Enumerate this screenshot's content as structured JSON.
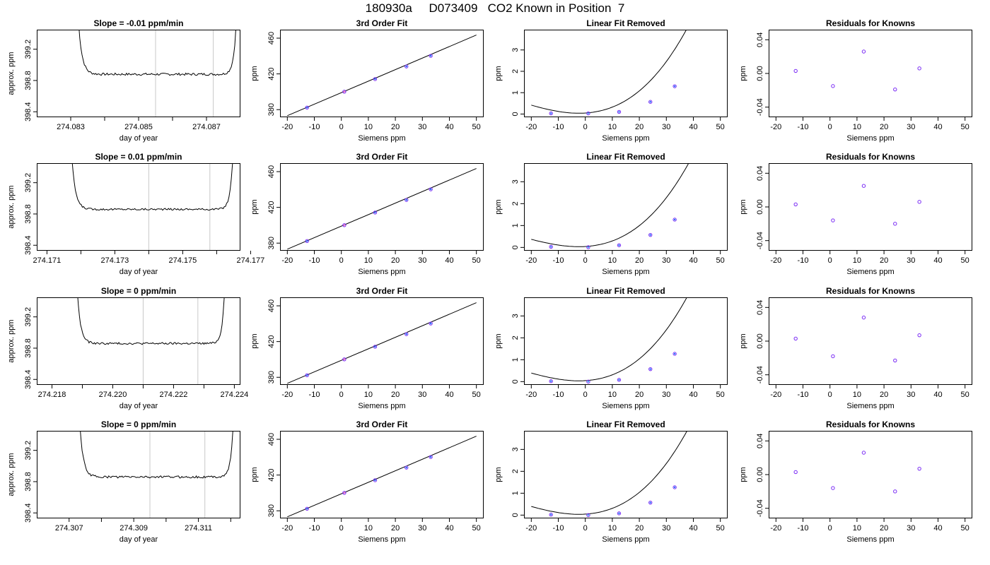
{
  "page": {
    "title": "180930a     D073409   CO2 Known in Position  7"
  },
  "style": {
    "trace_color": "#000000",
    "marker_outer": "#7b2cf5",
    "marker_inner": "#1e6fff",
    "marker_cyan": "#33aaff",
    "marker_pink": "#ff66cc",
    "vline_color": "#c8c8c8"
  },
  "chart_data": [
    {
      "type": "line",
      "row": 0,
      "col": 0,
      "title": "Slope =  -0.01  ppm/min",
      "xlabel": "day of year",
      "ylabel": "approx. ppm",
      "xlim": [
        274.082,
        274.088
      ],
      "ylim": [
        398.33,
        399.45
      ],
      "xticks": [
        274.083,
        274.085,
        274.087
      ],
      "xtick_labels": [
        "274.083",
        "274.085",
        "274.087"
      ],
      "yticks": [
        398.4,
        398.8,
        399.2
      ],
      "ytick_labels": [
        "398.4",
        "398.8",
        "399.2"
      ],
      "x_gap_ticks": [
        274.084,
        274.086
      ],
      "vlines": [
        274.0855,
        274.0872
      ],
      "shape": {
        "x_start": 274.0832,
        "x_end": 274.0879,
        "baseline": 398.88,
        "noise": 0.015
      }
    },
    {
      "type": "scatter",
      "row": 0,
      "col": 1,
      "title": "3rd Order Fit",
      "xlabel": "Siemens ppm",
      "ylabel": "ppm",
      "xlim": [
        -22.7,
        52.7
      ],
      "ylim": [
        371.5,
        469.5
      ],
      "xticks": [
        -20,
        -10,
        0,
        10,
        20,
        30,
        40,
        50
      ],
      "xtick_labels": [
        "-20",
        "-10",
        "0",
        "10",
        "20",
        "30",
        "40",
        "50"
      ],
      "yticks": [
        380,
        420,
        460
      ],
      "ytick_labels": [
        "380",
        "420",
        "460"
      ],
      "line": {
        "x": [
          -20,
          50
        ],
        "y": [
          373.2,
          463.5
        ]
      },
      "x": [
        -12.7,
        1.1,
        12.5,
        24.1,
        33.1
      ],
      "y": [
        382.3,
        400.1,
        414.2,
        428.3,
        440.2
      ]
    },
    {
      "type": "scatter",
      "row": 0,
      "col": 2,
      "title": "Linear Fit Removed",
      "xlabel": "Siemens ppm",
      "ylabel": "ppm",
      "xlim": [
        -22.7,
        52.7
      ],
      "ylim": [
        -0.15,
        3.95
      ],
      "xticks": [
        -20,
        -10,
        0,
        10,
        20,
        30,
        40,
        50
      ],
      "xtick_labels": [
        "-20",
        "-10",
        "0",
        "10",
        "20",
        "30",
        "40",
        "50"
      ],
      "yticks": [
        0,
        1,
        2,
        3
      ],
      "ytick_labels": [
        "0",
        "1",
        "2",
        "3"
      ],
      "curve": {
        "coef": [
          0.047,
          0.0079,
          0.00176,
          2.18e-05
        ],
        "xrange": [
          -20,
          50
        ]
      },
      "x": [
        -12.7,
        1.1,
        12.5,
        24.1,
        33.1
      ],
      "y": [
        0.03,
        0.03,
        0.1,
        0.57,
        1.3
      ]
    },
    {
      "type": "scatter",
      "row": 0,
      "col": 3,
      "title": "Residuals for Knowns",
      "xlabel": "Siemens ppm",
      "ylabel": "ppm",
      "xlim": [
        -22.7,
        52.7
      ],
      "ylim": [
        -0.052,
        0.052
      ],
      "xticks": [
        -20,
        -10,
        0,
        10,
        20,
        30,
        40,
        50
      ],
      "xtick_labels": [
        "-20",
        "-10",
        "0",
        "10",
        "20",
        "30",
        "40",
        "50"
      ],
      "yticks": [
        -0.04,
        0.0,
        0.04
      ],
      "ytick_labels": [
        "-0.04",
        "0.00",
        "0.04"
      ],
      "x": [
        -12.7,
        1.1,
        12.5,
        24.1,
        33.1
      ],
      "y": [
        0.003,
        -0.015,
        0.026,
        -0.019,
        0.006
      ]
    },
    {
      "type": "line",
      "row": 1,
      "col": 0,
      "title": "Slope =  0.01  ppm/min",
      "xlabel": "day of year",
      "ylabel": "approx. ppm",
      "xlim": [
        274.1707,
        274.1767
      ],
      "ylim": [
        398.33,
        399.45
      ],
      "xticks": [
        274.171,
        274.173,
        274.175,
        274.177
      ],
      "xtick_labels": [
        "274.171",
        "274.173",
        "274.175",
        "274.177"
      ],
      "yticks": [
        398.4,
        398.8,
        399.2
      ],
      "ytick_labels": [
        "398.4",
        "398.8",
        "399.2"
      ],
      "x_gap_ticks": [
        274.172,
        274.174,
        274.176
      ],
      "vlines": [
        274.174,
        274.1758
      ],
      "shape": {
        "x_start": 274.1717,
        "x_end": 274.1765,
        "baseline": 398.86,
        "noise": 0.012
      }
    },
    {
      "type": "scatter",
      "row": 1,
      "col": 1,
      "title": "3rd Order Fit",
      "xlabel": "Siemens ppm",
      "ylabel": "ppm",
      "xlim": [
        -22.7,
        52.7
      ],
      "ylim": [
        371.5,
        469.5
      ],
      "xticks": [
        -20,
        -10,
        0,
        10,
        20,
        30,
        40,
        50
      ],
      "xtick_labels": [
        "-20",
        "-10",
        "0",
        "10",
        "20",
        "30",
        "40",
        "50"
      ],
      "yticks": [
        380,
        420,
        460
      ],
      "ytick_labels": [
        "380",
        "420",
        "460"
      ],
      "line": {
        "x": [
          -20,
          50
        ],
        "y": [
          373.2,
          463.5
        ]
      },
      "x": [
        -12.7,
        1.1,
        12.5,
        24.1,
        33.1
      ],
      "y": [
        382.3,
        400.1,
        414.2,
        428.3,
        440.2
      ]
    },
    {
      "type": "scatter",
      "row": 1,
      "col": 2,
      "title": "Linear Fit Removed",
      "xlabel": "Siemens ppm",
      "ylabel": "ppm",
      "xlim": [
        -22.7,
        52.7
      ],
      "ylim": [
        -0.15,
        3.85
      ],
      "xticks": [
        -20,
        -10,
        0,
        10,
        20,
        30,
        40,
        50
      ],
      "xtick_labels": [
        "-20",
        "-10",
        "0",
        "10",
        "20",
        "30",
        "40",
        "50"
      ],
      "yticks": [
        0,
        1,
        2,
        3
      ],
      "ytick_labels": [
        "0",
        "1",
        "2",
        "3"
      ],
      "curve": {
        "coef": [
          0.043,
          0.0072,
          0.0016,
          2.12e-05
        ],
        "xrange": [
          -20,
          50
        ]
      },
      "x": [
        -12.7,
        1.1,
        12.5,
        24.1,
        33.1
      ],
      "y": [
        0.03,
        0.01,
        0.1,
        0.57,
        1.27
      ]
    },
    {
      "type": "scatter",
      "row": 1,
      "col": 3,
      "title": "Residuals for Knowns",
      "xlabel": "Siemens ppm",
      "ylabel": "ppm",
      "xlim": [
        -22.7,
        52.7
      ],
      "ylim": [
        -0.052,
        0.052
      ],
      "xticks": [
        -20,
        -10,
        0,
        10,
        20,
        30,
        40,
        50
      ],
      "xtick_labels": [
        "-20",
        "-10",
        "0",
        "10",
        "20",
        "30",
        "40",
        "50"
      ],
      "yticks": [
        -0.04,
        0.0,
        0.04
      ],
      "ytick_labels": [
        "-0.04",
        "0.00",
        "0.04"
      ],
      "x": [
        -12.7,
        1.1,
        12.5,
        24.1,
        33.1
      ],
      "y": [
        0.003,
        -0.016,
        0.025,
        -0.02,
        0.006
      ]
    },
    {
      "type": "line",
      "row": 2,
      "col": 0,
      "title": "Slope =  0  ppm/min",
      "xlabel": "day of year",
      "ylabel": "approx. ppm",
      "xlim": [
        274.2175,
        274.2242
      ],
      "ylim": [
        398.33,
        399.45
      ],
      "xticks": [
        274.218,
        274.22,
        274.222,
        274.224
      ],
      "xtick_labels": [
        "274.218",
        "274.220",
        "274.222",
        "274.224"
      ],
      "yticks": [
        398.4,
        398.8,
        399.2
      ],
      "ytick_labels": [
        "398.4",
        "398.8",
        "399.2"
      ],
      "x_gap_ticks": [
        274.219,
        274.221,
        274.223
      ],
      "vlines": [
        274.221,
        274.2228
      ],
      "shape": {
        "x_start": 274.2188,
        "x_end": 274.2237,
        "baseline": 398.86,
        "noise": 0.013
      }
    },
    {
      "type": "scatter",
      "row": 2,
      "col": 1,
      "title": "3rd Order Fit",
      "xlabel": "Siemens ppm",
      "ylabel": "ppm",
      "xlim": [
        -22.7,
        52.7
      ],
      "ylim": [
        371.5,
        469.5
      ],
      "xticks": [
        -20,
        -10,
        0,
        10,
        20,
        30,
        40,
        50
      ],
      "xtick_labels": [
        "-20",
        "-10",
        "0",
        "10",
        "20",
        "30",
        "40",
        "50"
      ],
      "yticks": [
        380,
        420,
        460
      ],
      "ytick_labels": [
        "380",
        "420",
        "460"
      ],
      "line": {
        "x": [
          -20,
          50
        ],
        "y": [
          373.2,
          463.5
        ]
      },
      "x": [
        -12.7,
        1.1,
        12.5,
        24.1,
        33.1
      ],
      "y": [
        382.3,
        400.1,
        414.2,
        428.3,
        440.2
      ]
    },
    {
      "type": "scatter",
      "row": 2,
      "col": 2,
      "title": "Linear Fit Removed",
      "xlabel": "Siemens ppm",
      "ylabel": "ppm",
      "xlim": [
        -22.7,
        52.7
      ],
      "ylim": [
        -0.15,
        3.85
      ],
      "xticks": [
        -20,
        -10,
        0,
        10,
        20,
        30,
        40,
        50
      ],
      "xtick_labels": [
        "-20",
        "-10",
        "0",
        "10",
        "20",
        "30",
        "40",
        "50"
      ],
      "yticks": [
        0,
        1,
        2,
        3
      ],
      "ytick_labels": [
        "0",
        "1",
        "2",
        "3"
      ],
      "curve": {
        "coef": [
          0.045,
          0.0076,
          0.00168,
          2.15e-05
        ],
        "xrange": [
          -20,
          50
        ]
      },
      "x": [
        -12.7,
        1.1,
        12.5,
        24.1,
        33.1
      ],
      "y": [
        0.02,
        0.0,
        0.08,
        0.57,
        1.27
      ]
    },
    {
      "type": "scatter",
      "row": 2,
      "col": 3,
      "title": "Residuals for Knowns",
      "xlabel": "Siemens ppm",
      "ylabel": "ppm",
      "xlim": [
        -22.7,
        52.7
      ],
      "ylim": [
        -0.052,
        0.052
      ],
      "xticks": [
        -20,
        -10,
        0,
        10,
        20,
        30,
        40,
        50
      ],
      "xtick_labels": [
        "-20",
        "-10",
        "0",
        "10",
        "20",
        "30",
        "40",
        "50"
      ],
      "yticks": [
        -0.04,
        0.0,
        0.04
      ],
      "ytick_labels": [
        "-0.04",
        "0.00",
        "0.04"
      ],
      "x": [
        -12.7,
        1.1,
        12.5,
        24.1,
        33.1
      ],
      "y": [
        0.003,
        -0.018,
        0.028,
        -0.023,
        0.007
      ]
    },
    {
      "type": "line",
      "row": 3,
      "col": 0,
      "title": "Slope =  0  ppm/min",
      "xlabel": "day of year",
      "ylabel": "approx. ppm",
      "xlim": [
        274.306,
        274.3123
      ],
      "ylim": [
        398.33,
        399.45
      ],
      "xticks": [
        274.307,
        274.309,
        274.311
      ],
      "xtick_labels": [
        "274.307",
        "274.309",
        "274.311"
      ],
      "yticks": [
        398.4,
        398.8,
        399.2
      ],
      "ytick_labels": [
        "398.4",
        "398.8",
        "399.2"
      ],
      "x_gap_ticks": [
        274.308,
        274.31,
        274.312
      ],
      "vlines": [
        274.3095,
        274.3112
      ],
      "shape": {
        "x_start": 274.3073,
        "x_end": 274.3121,
        "baseline": 398.86,
        "noise": 0.014
      }
    },
    {
      "type": "scatter",
      "row": 3,
      "col": 1,
      "title": "3rd Order Fit",
      "xlabel": "Siemens ppm",
      "ylabel": "ppm",
      "xlim": [
        -22.7,
        52.7
      ],
      "ylim": [
        371.5,
        469.5
      ],
      "xticks": [
        -20,
        -10,
        0,
        10,
        20,
        30,
        40,
        50
      ],
      "xtick_labels": [
        "-20",
        "-10",
        "0",
        "10",
        "20",
        "30",
        "40",
        "50"
      ],
      "yticks": [
        380,
        420,
        460
      ],
      "ytick_labels": [
        "380",
        "420",
        "460"
      ],
      "line": {
        "x": [
          -20,
          50
        ],
        "y": [
          373.2,
          463.5
        ]
      },
      "x": [
        -12.7,
        1.1,
        12.5,
        24.1,
        33.1
      ],
      "y": [
        382.3,
        400.1,
        414.2,
        428.3,
        440.2
      ]
    },
    {
      "type": "scatter",
      "row": 3,
      "col": 2,
      "title": "Linear Fit Removed",
      "xlabel": "Siemens ppm",
      "ylabel": "ppm",
      "xlim": [
        -22.7,
        52.7
      ],
      "ylim": [
        -0.15,
        3.85
      ],
      "xticks": [
        -20,
        -10,
        0,
        10,
        20,
        30,
        40,
        50
      ],
      "xtick_labels": [
        "-20",
        "-10",
        "0",
        "10",
        "20",
        "30",
        "40",
        "50"
      ],
      "yticks": [
        0,
        1,
        2,
        3
      ],
      "ytick_labels": [
        "0",
        "1",
        "2",
        "3"
      ],
      "curve": {
        "coef": [
          0.045,
          0.0076,
          0.00168,
          2.12e-05
        ],
        "xrange": [
          -20,
          50
        ]
      },
      "x": [
        -12.7,
        1.1,
        12.5,
        24.1,
        33.1
      ],
      "y": [
        0.02,
        0.0,
        0.08,
        0.57,
        1.27
      ]
    },
    {
      "type": "scatter",
      "row": 3,
      "col": 3,
      "title": "Residuals for Knowns",
      "xlabel": "Siemens ppm",
      "ylabel": "ppm",
      "xlim": [
        -22.7,
        52.7
      ],
      "ylim": [
        -0.052,
        0.052
      ],
      "xticks": [
        -20,
        -10,
        0,
        10,
        20,
        30,
        40,
        50
      ],
      "xtick_labels": [
        "-20",
        "-10",
        "0",
        "10",
        "20",
        "30",
        "40",
        "50"
      ],
      "yticks": [
        -0.04,
        0.0,
        0.04
      ],
      "ytick_labels": [
        "-0.04",
        "0.00",
        "0.04"
      ],
      "x": [
        -12.7,
        1.1,
        12.5,
        24.1,
        33.1
      ],
      "y": [
        0.003,
        -0.016,
        0.026,
        -0.02,
        0.007
      ]
    }
  ]
}
